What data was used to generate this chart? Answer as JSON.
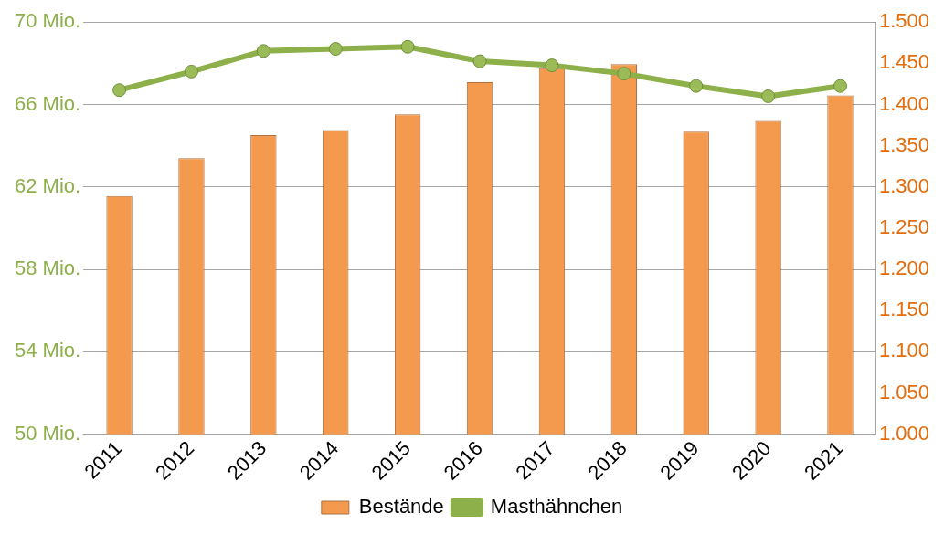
{
  "chart_data": {
    "type": "bar",
    "categories": [
      "2011",
      "2012",
      "2013",
      "2014",
      "2015",
      "2016",
      "2017",
      "2018",
      "2019",
      "2020",
      "2021"
    ],
    "series": [
      {
        "name": "Bestände",
        "axis": "y2",
        "color": "#f39a4e",
        "values": [
          1289,
          1335,
          1363,
          1369,
          1388,
          1427,
          1444,
          1449,
          1367,
          1380,
          1411
        ]
      },
      {
        "name": "Masthähnchen",
        "type": "line",
        "color": "#8db04a",
        "values": [
          66.7,
          67.6,
          68.6,
          68.7,
          68.8,
          68.1,
          67.9,
          67.5,
          66.9,
          66.4,
          66.9
        ]
      }
    ],
    "ylim": [
      50,
      70
    ],
    "yticks": [
      {
        "value": 50,
        "label": "50 Mio."
      },
      {
        "value": 54,
        "label": "54 Mio."
      },
      {
        "value": 58,
        "label": "58 Mio."
      },
      {
        "value": 62,
        "label": "62 Mio."
      },
      {
        "value": 66,
        "label": "66 Mio."
      },
      {
        "value": 70,
        "label": "70 Mio."
      }
    ],
    "y2lim": [
      1000,
      1500
    ],
    "y2ticks": [
      {
        "value": 1000,
        "label": "1.000"
      },
      {
        "value": 1050,
        "label": "1.050"
      },
      {
        "value": 1100,
        "label": "1.100"
      },
      {
        "value": 1150,
        "label": "1.150"
      },
      {
        "value": 1200,
        "label": "1.200"
      },
      {
        "value": 1250,
        "label": "1.250"
      },
      {
        "value": 1300,
        "label": "1.300"
      },
      {
        "value": 1350,
        "label": "1.350"
      },
      {
        "value": 1400,
        "label": "1.400"
      },
      {
        "value": 1450,
        "label": "1.450"
      },
      {
        "value": 1500,
        "label": "1.500"
      }
    ],
    "grid": "y",
    "legend": "bottom",
    "marker": "circle"
  }
}
